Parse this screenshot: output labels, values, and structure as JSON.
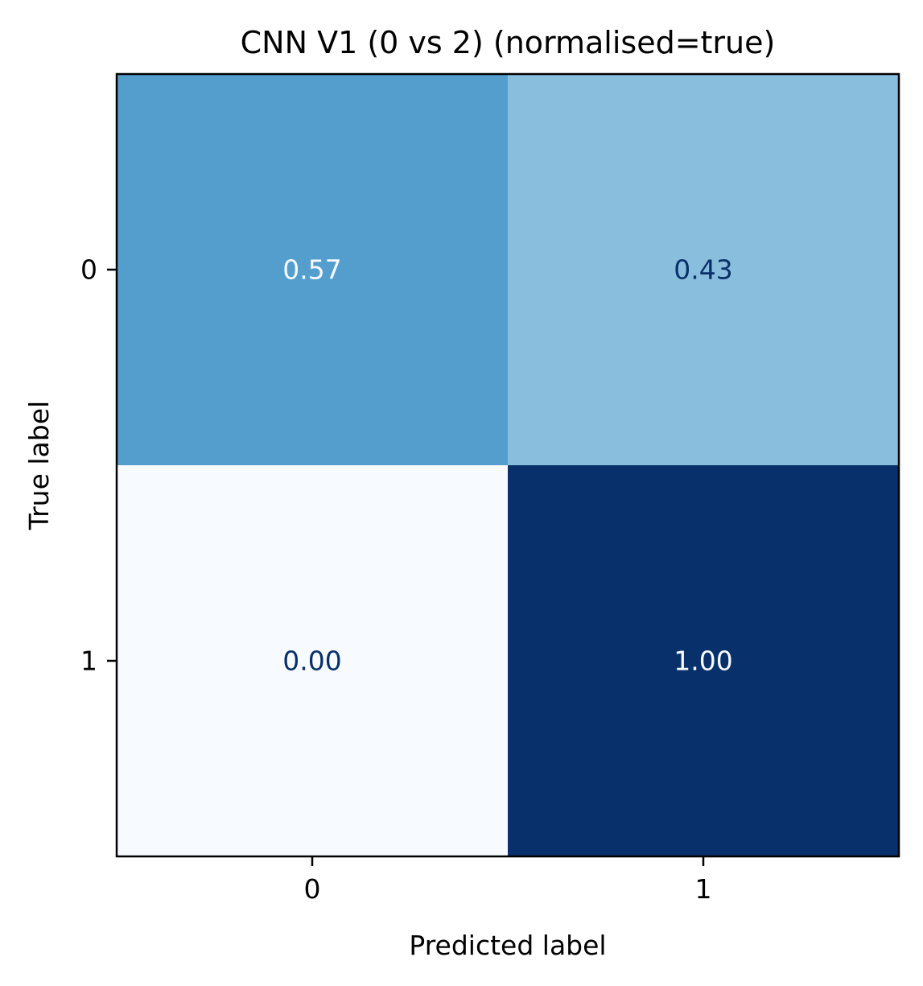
{
  "chart_data": {
    "type": "heatmap",
    "title": "CNN V1 (0 vs 2) (normalised=true)",
    "xlabel": "Predicted label",
    "ylabel": "True label",
    "x_categories": [
      "0",
      "1"
    ],
    "y_categories": [
      "0",
      "1"
    ],
    "values": [
      [
        0.57,
        0.43
      ],
      [
        0.0,
        1.0
      ]
    ],
    "cell_labels": [
      [
        "0.57",
        "0.43"
      ],
      [
        "0.00",
        "1.00"
      ]
    ],
    "colormap": "Blues",
    "value_range": [
      0,
      1
    ],
    "colors": {
      "cells": [
        [
          "#539ecd",
          "#89bedc"
        ],
        [
          "#f7fbff",
          "#08306b"
        ]
      ],
      "labels": [
        [
          "#f7fbff",
          "#08306b"
        ],
        [
          "#08306b",
          "#f7fbff"
        ]
      ]
    },
    "grid": false,
    "colorbar": false
  }
}
